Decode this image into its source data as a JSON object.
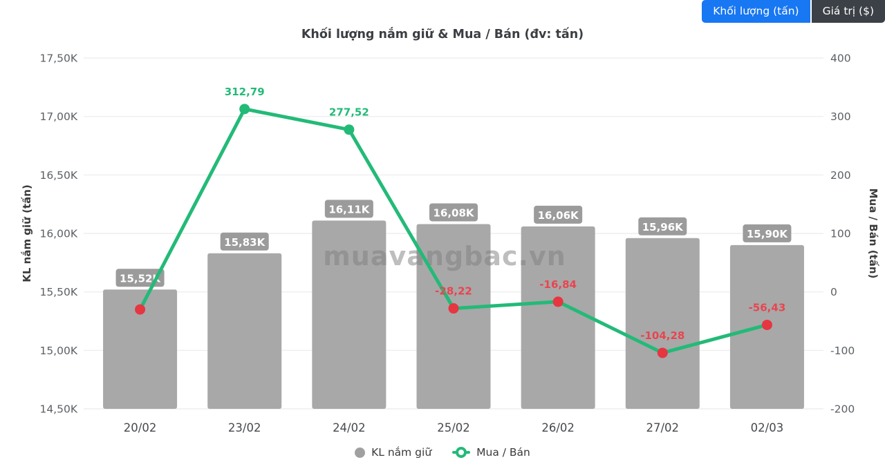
{
  "toolbar": {
    "buttons": [
      {
        "label": "Khối lượng (tấn)",
        "active": true
      },
      {
        "label": "Giá trị ($)",
        "active": false
      }
    ]
  },
  "watermark": "muavangbac.vn",
  "colors": {
    "accent_blue": "#1877f2",
    "button_dark": "#3c4147",
    "bar_gray": "#a8a8a8",
    "badge_gray": "#9b9b9b",
    "line_green": "#23ba78",
    "negative_red": "#e84550",
    "dot_red": "#e63641",
    "grid": "#ebebeb"
  },
  "chart_data": {
    "type": "bar+line combo",
    "title": "Khối lượng nắm giữ & Mua / Bán (đv: tấn)",
    "categories": [
      "20/02",
      "23/02",
      "24/02",
      "25/02",
      "26/02",
      "27/02",
      "02/03"
    ],
    "series": [
      {
        "name": "KL nắm giữ",
        "type": "bar",
        "axis": "left",
        "values": [
          15520,
          15830,
          16110,
          16080,
          16060,
          15960,
          15900
        ],
        "labels": [
          "15,52K",
          "15,83K",
          "16,11K",
          "16,08K",
          "16,06K",
          "15,96K",
          "15,90K"
        ],
        "color": "#a8a8a8",
        "badge_color": "#9b9b9b"
      },
      {
        "name": "Mua / Bán",
        "type": "line",
        "axis": "right",
        "values": [
          -30,
          312.79,
          277.52,
          -28.22,
          -16.84,
          -104.28,
          -56.43
        ],
        "labels": [
          "",
          "312,79",
          "277,52",
          "-28,22",
          "-16,84",
          "-104,28",
          "-56,43"
        ],
        "line_color": "#23ba78",
        "positive_color": "#23ba78",
        "negative_color": "#e84550",
        "negative_dot_color": "#e63641"
      }
    ],
    "left_axis": {
      "label": "KL nắm giữ (tấn)",
      "ticks": [
        "17,50K",
        "17,00K",
        "16,50K",
        "16,00K",
        "15,50K",
        "15,00K",
        "14,50K"
      ],
      "min": 14500,
      "max": 17500
    },
    "right_axis": {
      "label": "Mua / Bán (tấn)",
      "ticks": [
        "400",
        "300",
        "200",
        "100",
        "0",
        "-100",
        "-200"
      ],
      "min": -200,
      "max": 400
    },
    "legend_position": "bottom",
    "grid": true
  }
}
